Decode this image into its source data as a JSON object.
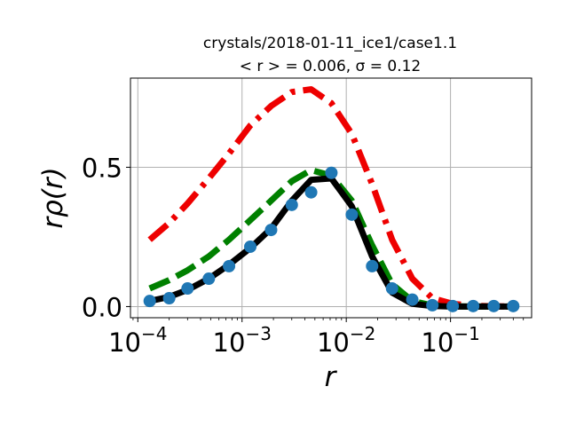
{
  "chart_data": {
    "type": "line",
    "title": "crystals/2018-01-11_ice1/case1.1",
    "subtitle": "< r > = 0.006, σ = 0.12",
    "xlabel": "r",
    "ylabel": "rρ(r)",
    "xscale": "log",
    "xlim": [
      8.5e-05,
      0.6
    ],
    "ylim": [
      -0.04,
      0.82
    ],
    "grid": true,
    "x_ticks": [
      {
        "value": 0.0001,
        "base": "10",
        "exp": "−4"
      },
      {
        "value": 0.001,
        "base": "10",
        "exp": "−3"
      },
      {
        "value": 0.01,
        "base": "10",
        "exp": "−2"
      },
      {
        "value": 0.1,
        "base": "10",
        "exp": "−1"
      }
    ],
    "y_ticks": [
      {
        "value": 0.0,
        "label": "0.0"
      },
      {
        "value": 0.5,
        "label": "0.5"
      }
    ],
    "series": [
      {
        "style": "dashdot",
        "color": "#ee0000",
        "x": [
          0.00013,
          0.0002,
          0.0003,
          0.00048,
          0.00075,
          0.0012,
          0.0019,
          0.003,
          0.0046,
          0.0072,
          0.0113,
          0.0177,
          0.0275,
          0.043,
          0.067,
          0.105,
          0.165,
          0.26,
          0.4
        ],
        "y": [
          0.24,
          0.3,
          0.37,
          0.46,
          0.55,
          0.65,
          0.72,
          0.77,
          0.78,
          0.73,
          0.62,
          0.44,
          0.24,
          0.1,
          0.03,
          0.01,
          0.003,
          0.001,
          0.0
        ]
      },
      {
        "style": "dashed",
        "color": "#008000",
        "x": [
          0.00013,
          0.0002,
          0.0003,
          0.00048,
          0.00075,
          0.0012,
          0.0019,
          0.003,
          0.0046,
          0.0072,
          0.0113,
          0.0177,
          0.0275,
          0.043,
          0.067,
          0.105,
          0.165,
          0.26,
          0.4
        ],
        "y": [
          0.065,
          0.095,
          0.13,
          0.18,
          0.24,
          0.31,
          0.38,
          0.45,
          0.49,
          0.47,
          0.38,
          0.22,
          0.08,
          0.02,
          0.004,
          0.001,
          0.0,
          0.0,
          0.0
        ]
      },
      {
        "style": "solid",
        "color": "#000000",
        "x": [
          0.00013,
          0.0002,
          0.0003,
          0.00048,
          0.00075,
          0.0012,
          0.0019,
          0.003,
          0.0046,
          0.0072,
          0.0113,
          0.0177,
          0.0275,
          0.043,
          0.067,
          0.105,
          0.165,
          0.26,
          0.4
        ],
        "y": [
          0.02,
          0.035,
          0.06,
          0.1,
          0.15,
          0.21,
          0.28,
          0.38,
          0.455,
          0.46,
          0.36,
          0.18,
          0.05,
          0.01,
          0.002,
          0.0,
          0.0,
          0.0,
          0.0
        ]
      },
      {
        "style": "markers",
        "color": "#1f77b4",
        "x": [
          0.00013,
          0.0002,
          0.0003,
          0.00048,
          0.00075,
          0.0012,
          0.0019,
          0.003,
          0.0046,
          0.0072,
          0.0113,
          0.0177,
          0.0275,
          0.043,
          0.067,
          0.105,
          0.165,
          0.26,
          0.4
        ],
        "y": [
          0.02,
          0.03,
          0.065,
          0.1,
          0.145,
          0.215,
          0.275,
          0.365,
          0.41,
          0.48,
          0.33,
          0.145,
          0.065,
          0.025,
          0.005,
          0.002,
          0.002,
          0.002,
          0.002
        ]
      }
    ]
  }
}
